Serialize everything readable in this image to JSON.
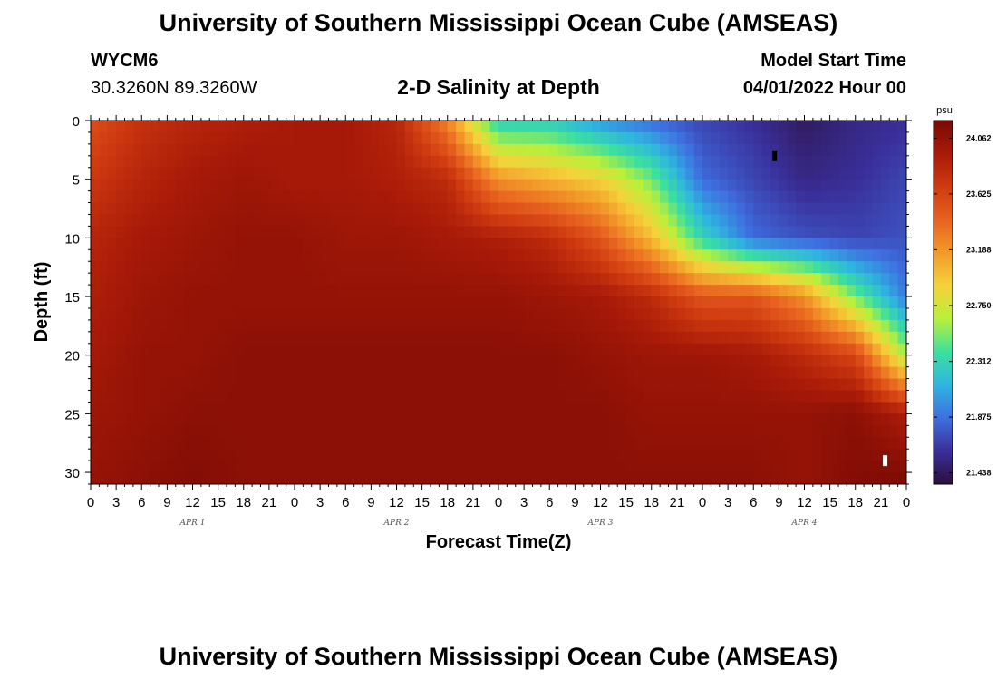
{
  "header": {
    "title": "University of Southern Mississippi Ocean Cube (AMSEAS)",
    "station_id": "WYCM6",
    "coords": "30.3260N  89.3260W",
    "subtitle": "2-D Salinity at Depth",
    "model_start_label": "Model Start Time",
    "model_start_value": "04/01/2022 Hour 00"
  },
  "footer": {
    "title": "University of Southern Mississippi Ocean Cube (AMSEAS)"
  },
  "chart_data": {
    "type": "heatmap",
    "xlabel": "Forecast Time(Z)",
    "ylabel": "Depth (ft)",
    "x_range_hours": [
      0,
      96
    ],
    "ylim": [
      0,
      31
    ],
    "y_inverted": true,
    "x_ticks": [
      "0",
      "3",
      "6",
      "9",
      "12",
      "15",
      "18",
      "21",
      "0",
      "3",
      "6",
      "9",
      "12",
      "15",
      "18",
      "21",
      "0",
      "3",
      "6",
      "9",
      "12",
      "15",
      "18",
      "21",
      "0",
      "3",
      "6",
      "9",
      "12",
      "15",
      "18",
      "21",
      "0"
    ],
    "y_ticks": [
      0,
      5,
      10,
      15,
      20,
      25,
      30
    ],
    "day_labels": [
      {
        "label": "APR 1",
        "hour": 12
      },
      {
        "label": "APR 2",
        "hour": 36
      },
      {
        "label": "APR 3",
        "hour": 60
      },
      {
        "label": "APR 4",
        "hour": 84
      }
    ],
    "colorbar": {
      "unit": "psu",
      "min": 21.35,
      "max": 24.2,
      "tick_values": [
        24.062,
        23.625,
        23.188,
        22.75,
        22.312,
        21.875,
        21.438
      ],
      "tick_labels": [
        "24.062",
        "23.625",
        "23.188",
        "22.750",
        "22.312",
        "21.875",
        "21.438"
      ],
      "colors": [
        "#2a0f3a",
        "#3a2f9a",
        "#3e6fe0",
        "#2eb5e0",
        "#3be0a0",
        "#b8f03a",
        "#f5d23a",
        "#f39a2a",
        "#e86220",
        "#cf3a10",
        "#a81a08",
        "#7a0a04"
      ]
    },
    "salinity_grid": {
      "x_hours": [
        0,
        6,
        12,
        18,
        24,
        30,
        36,
        42,
        48,
        54,
        60,
        66,
        72,
        78,
        84,
        90,
        96
      ],
      "depths_ft": [
        0,
        5,
        10,
        15,
        20,
        25,
        31
      ],
      "values_psu": [
        [
          23.55,
          23.75,
          23.85,
          23.9,
          23.95,
          23.95,
          23.85,
          23.25,
          22.25,
          22.25,
          22.0,
          21.85,
          21.7,
          21.6,
          21.45,
          21.55,
          21.6
        ],
        [
          23.7,
          23.85,
          23.95,
          24.0,
          23.95,
          23.95,
          23.9,
          23.8,
          23.2,
          23.05,
          22.9,
          22.5,
          21.85,
          21.7,
          21.55,
          21.6,
          21.7
        ],
        [
          23.85,
          23.95,
          24.0,
          24.05,
          24.05,
          24.0,
          24.0,
          23.95,
          23.9,
          23.8,
          23.5,
          23.0,
          22.3,
          21.85,
          21.75,
          21.7,
          21.75
        ],
        [
          23.9,
          24.0,
          24.05,
          24.05,
          24.05,
          24.05,
          24.05,
          24.05,
          24.05,
          24.0,
          23.95,
          23.8,
          23.5,
          23.5,
          23.2,
          22.5,
          21.9
        ],
        [
          23.95,
          24.05,
          24.05,
          24.1,
          24.1,
          24.1,
          24.1,
          24.1,
          24.1,
          24.1,
          24.05,
          24.0,
          24.0,
          23.95,
          23.8,
          23.6,
          22.6
        ],
        [
          24.0,
          24.05,
          24.1,
          24.1,
          24.1,
          24.1,
          24.1,
          24.1,
          24.1,
          24.1,
          24.1,
          24.05,
          24.05,
          24.05,
          24.05,
          24.1,
          23.9
        ],
        [
          24.05,
          24.1,
          24.15,
          24.1,
          24.1,
          24.1,
          24.1,
          24.1,
          24.1,
          24.1,
          24.1,
          24.1,
          24.1,
          24.1,
          24.05,
          24.15,
          24.2
        ]
      ]
    },
    "markers": [
      {
        "name": "min-marker",
        "hour": 80.5,
        "depth_ft": 3,
        "color": "#000000"
      },
      {
        "name": "max-marker",
        "hour": 93.5,
        "depth_ft": 29,
        "color": "#ffffff"
      }
    ]
  }
}
